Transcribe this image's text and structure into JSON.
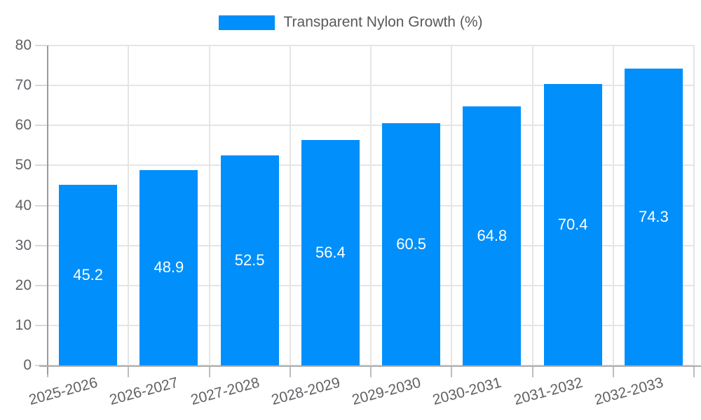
{
  "legend": {
    "label": "Transparent Nylon Growth (%)"
  },
  "chart_data": {
    "type": "bar",
    "title": "Transparent Nylon Growth (%)",
    "series": [
      {
        "name": "Transparent Nylon Growth (%)",
        "values": [
          45.2,
          48.9,
          52.5,
          56.4,
          60.5,
          64.8,
          70.4,
          74.3
        ]
      }
    ],
    "categories": [
      "2025-2026",
      "2026-2027",
      "2027-2028",
      "2028-2029",
      "2029-2030",
      "2030-2031",
      "2031-2032",
      "2032-2033"
    ],
    "value_labels": [
      "45.2",
      "48.9",
      "52.5",
      "56.4",
      "60.5",
      "64.8",
      "70.4",
      "74.3"
    ],
    "xlabel": "",
    "ylabel": "",
    "ylim": [
      0,
      80
    ],
    "yticks": [
      0,
      10,
      20,
      30,
      40,
      50,
      60,
      70,
      80
    ],
    "grid": true,
    "legend_position": "top-center",
    "x_label_rotation_deg": -15,
    "colors": {
      "bar": "#008FFB",
      "value_label": "#FFFFFF",
      "axis_label": "#5F6164",
      "legend_text": "#58595B",
      "gridline": "#E5E5E5",
      "axis_line": "#9B9B9B",
      "background": "#FFFFFF"
    }
  }
}
